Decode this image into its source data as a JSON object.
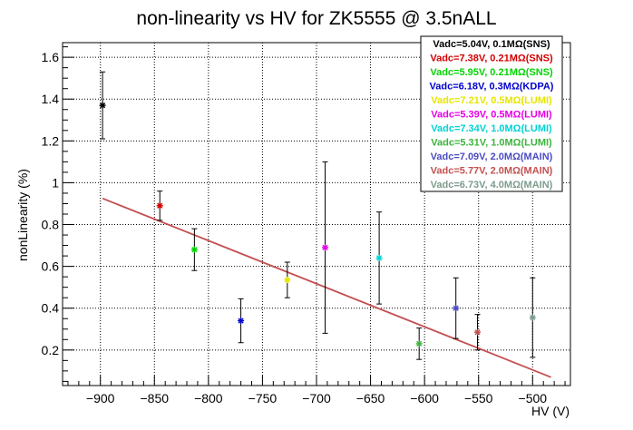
{
  "chart_data": {
    "type": "scatter",
    "title": "non-linearity vs HV for ZK5555 @ 3.5nALL",
    "xlabel": "HV (V)",
    "ylabel": "nonLinearity (%)",
    "xlim": [
      -935,
      -465
    ],
    "ylim": [
      0.03,
      1.67
    ],
    "x_ticks": [
      -900,
      -850,
      -800,
      -750,
      -700,
      -650,
      -600,
      -550,
      -500
    ],
    "x_tick_labels": [
      "−900",
      "−850",
      "−800",
      "−750",
      "−700",
      "−650",
      "−600",
      "−550",
      "−500"
    ],
    "y_ticks": [
      0.2,
      0.4,
      0.6,
      0.8,
      1.0,
      1.2,
      1.4,
      1.6
    ],
    "y_tick_labels": [
      "0.2",
      "0.4",
      "0.6",
      "0.8",
      "1",
      "1.2",
      "1.4",
      "1.6"
    ],
    "grid": true,
    "legend_position": "top-right",
    "series": [
      {
        "name": "Vadc=5.04V, 0.1MΩ(SNS)",
        "color": "#000000",
        "x": -898,
        "y": 1.37,
        "err": 0.16
      },
      {
        "name": "Vadc=7.38V, 0.21MΩ(SNS)",
        "color": "#d40000",
        "x": -845,
        "y": 0.89,
        "err": 0.07
      },
      {
        "name": "Vadc=5.95V, 0.21MΩ(SNS)",
        "color": "#00d400",
        "x": -813,
        "y": 0.68,
        "err": 0.1
      },
      {
        "name": "Vadc=6.18V, 0.3MΩ(KDPA)",
        "color": "#0000cc",
        "x": -770,
        "y": 0.34,
        "err": 0.105
      },
      {
        "name": "Vadc=7.21V, 0.5MΩ(LUMI)",
        "color": "#e6e600",
        "x": -727,
        "y": 0.535,
        "err": 0.085
      },
      {
        "name": "Vadc=5.39V, 0.5MΩ(LUMI)",
        "color": "#e600e6",
        "x": -692,
        "y": 0.69,
        "err": 0.41
      },
      {
        "name": "Vadc=7.34V, 1.0MΩ(LUMI)",
        "color": "#00d4d4",
        "x": -642,
        "y": 0.64,
        "err": 0.22
      },
      {
        "name": "Vadc=5.31V, 1.0MΩ(LUMI)",
        "color": "#3cb43c",
        "x": -605,
        "y": 0.23,
        "err": 0.075
      },
      {
        "name": "Vadc=7.09V, 2.0MΩ(MAIN)",
        "color": "#4b4bc3",
        "x": -571,
        "y": 0.4,
        "err": 0.145
      },
      {
        "name": "Vadc=5.77V, 2.0MΩ(MAIN)",
        "color": "#c35050",
        "x": -551,
        "y": 0.285,
        "err": 0.085
      },
      {
        "name": "Vadc=6.73V, 4.0MΩ(MAIN)",
        "color": "#7d9b8c",
        "x": -500,
        "y": 0.355,
        "err": 0.19
      }
    ],
    "fit_line": {
      "color": "#c35050",
      "x": [
        -898,
        -483
      ],
      "y": [
        0.925,
        0.07
      ]
    }
  }
}
